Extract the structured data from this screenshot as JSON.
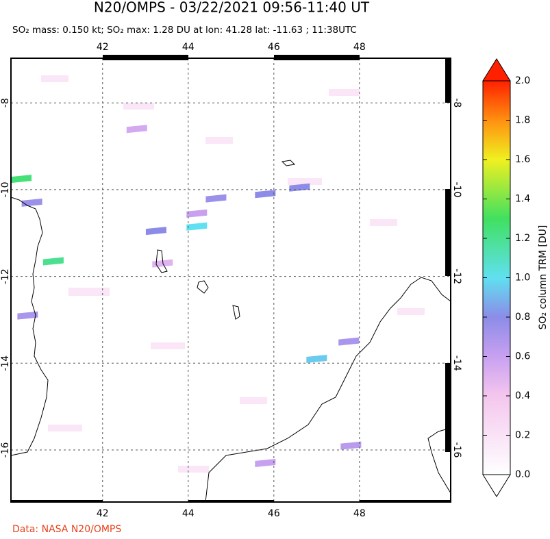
{
  "title": "N20/OMPS - 03/22/2021 09:56-11:40 UT",
  "subtitle": "SO₂ mass: 0.150 kt; SO₂ max: 1.28 DU at lon: 41.28 lat: -11.63 ; 11:38UTC",
  "map": {
    "lon_range": [
      39.86,
      50.13
    ],
    "lat_range": [
      -17.2,
      -6.97
    ],
    "lon_ticks": [
      42,
      44,
      46,
      48
    ],
    "lat_ticks": [
      -8,
      -10,
      -12,
      -14,
      -16
    ],
    "pixels": [
      {
        "lon": 40.1,
        "lat": -9.75,
        "value": 1.25
      },
      {
        "lon": 40.35,
        "lat": -10.3,
        "value": 0.75
      },
      {
        "lon": 40.85,
        "lat": -11.65,
        "value": 1.2
      },
      {
        "lon": 43.25,
        "lat": -10.95,
        "value": 0.8
      },
      {
        "lon": 44.2,
        "lat": -10.55,
        "value": 0.6
      },
      {
        "lon": 44.65,
        "lat": -10.2,
        "value": 0.75
      },
      {
        "lon": 44.2,
        "lat": -10.85,
        "value": 1.0
      },
      {
        "lon": 45.8,
        "lat": -10.1,
        "value": 0.8
      },
      {
        "lon": 46.6,
        "lat": -9.95,
        "value": 0.8
      },
      {
        "lon": 40.25,
        "lat": -12.9,
        "value": 0.7
      },
      {
        "lon": 47.0,
        "lat": -13.9,
        "value": 0.95
      },
      {
        "lon": 47.75,
        "lat": -13.5,
        "value": 0.7
      },
      {
        "lon": 45.8,
        "lat": -16.3,
        "value": 0.6
      },
      {
        "lon": 47.8,
        "lat": -15.9,
        "value": 0.65
      },
      {
        "lon": 42.8,
        "lat": -8.6,
        "value": 0.55
      },
      {
        "lon": 43.4,
        "lat": -11.7,
        "value": 0.5
      }
    ]
  },
  "colorbar": {
    "label": "SO₂ column TRM [DU]",
    "range": [
      0,
      2
    ],
    "ticks": [
      {
        "value": 0,
        "label": "0.0"
      },
      {
        "value": 0.2,
        "label": "0.2"
      },
      {
        "value": 0.4,
        "label": "0.4"
      },
      {
        "value": 0.6,
        "label": "0.6"
      },
      {
        "value": 0.8,
        "label": "0.8"
      },
      {
        "value": 1,
        "label": "1.0"
      },
      {
        "value": 1.2,
        "label": "1.2"
      },
      {
        "value": 1.4,
        "label": "1.4"
      },
      {
        "value": 1.6,
        "label": "1.6"
      },
      {
        "value": 1.8,
        "label": "1.8"
      },
      {
        "value": 2,
        "label": "2.0"
      }
    ]
  },
  "credit": "Data: NASA N20/OMPS"
}
